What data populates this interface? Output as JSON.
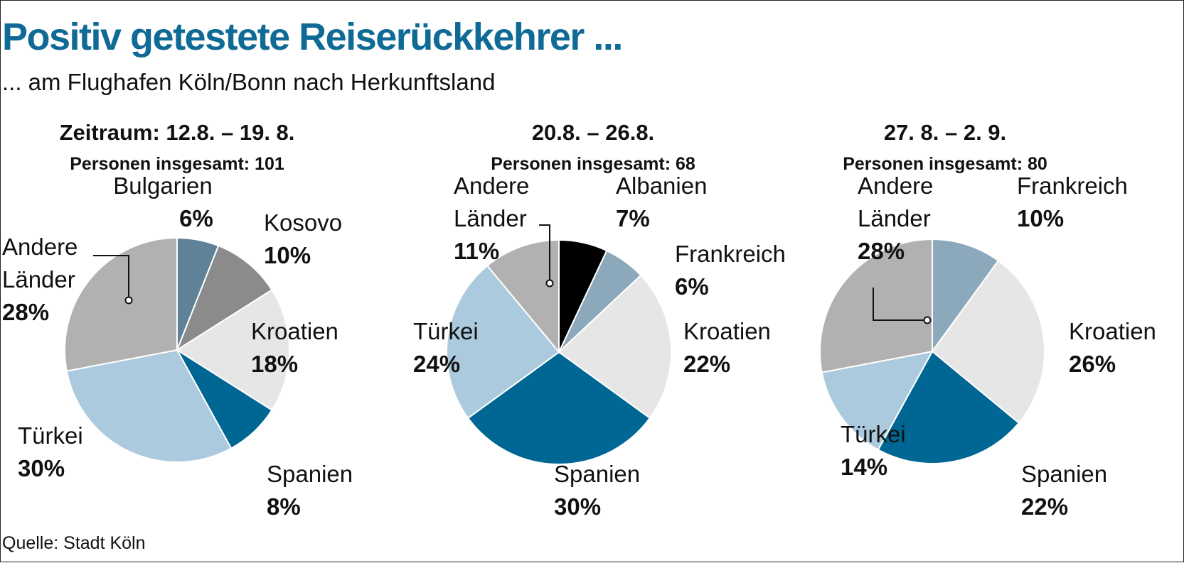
{
  "header": {
    "title": "Positiv getestete Reiserückkehrer ...",
    "subtitle": "... am Flughafen Köln/Bonn nach Herkunftsland"
  },
  "source": "Quelle: Stadt Köln",
  "colors": {
    "title": "#0f6a96",
    "Bulgarien": "#5f8299",
    "Kosovo": "#8c8b8b",
    "Kroatien": "#e6e6e6",
    "Spanien": "#006794",
    "Türkei": "#abcadd",
    "Andere Länder": "#b1b1b1",
    "Albanien": "#000000",
    "Frankreich": "#8ca8bb"
  },
  "chart_data": [
    {
      "type": "pie",
      "title": "Zeitraum: 12.8. – 19. 8.",
      "subtitle": "Personen insgesamt: 101",
      "slices": [
        {
          "label": "Bulgarien",
          "value": 6,
          "value_label": "6%"
        },
        {
          "label": "Kosovo",
          "value": 10,
          "value_label": "10%"
        },
        {
          "label": "Kroatien",
          "value": 18,
          "value_label": "18%"
        },
        {
          "label": "Spanien",
          "value": 8,
          "value_label": "8%"
        },
        {
          "label": "Türkei",
          "value": 30,
          "value_label": "30%"
        },
        {
          "label": "Andere Länder",
          "value": 28,
          "value_label": "28%"
        }
      ]
    },
    {
      "type": "pie",
      "title": "20.8. – 26.8.",
      "subtitle": "Personen insgesamt: 68",
      "slices": [
        {
          "label": "Albanien",
          "value": 7,
          "value_label": "7%"
        },
        {
          "label": "Frankreich",
          "value": 6,
          "value_label": "6%"
        },
        {
          "label": "Kroatien",
          "value": 22,
          "value_label": "22%"
        },
        {
          "label": "Spanien",
          "value": 30,
          "value_label": "30%"
        },
        {
          "label": "Türkei",
          "value": 24,
          "value_label": "24%"
        },
        {
          "label": "Andere Länder",
          "value": 11,
          "value_label": "11%"
        }
      ]
    },
    {
      "type": "pie",
      "title": "27. 8. – 2. 9.",
      "subtitle": "Personen insgesamt: 80",
      "slices": [
        {
          "label": "Frankreich",
          "value": 10,
          "value_label": "10%"
        },
        {
          "label": "Kroatien",
          "value": 26,
          "value_label": "26%"
        },
        {
          "label": "Spanien",
          "value": 22,
          "value_label": "22%"
        },
        {
          "label": "Türkei",
          "value": 14,
          "value_label": "14%"
        },
        {
          "label": "Andere Länder",
          "value": 28,
          "value_label": "28%"
        }
      ]
    }
  ]
}
